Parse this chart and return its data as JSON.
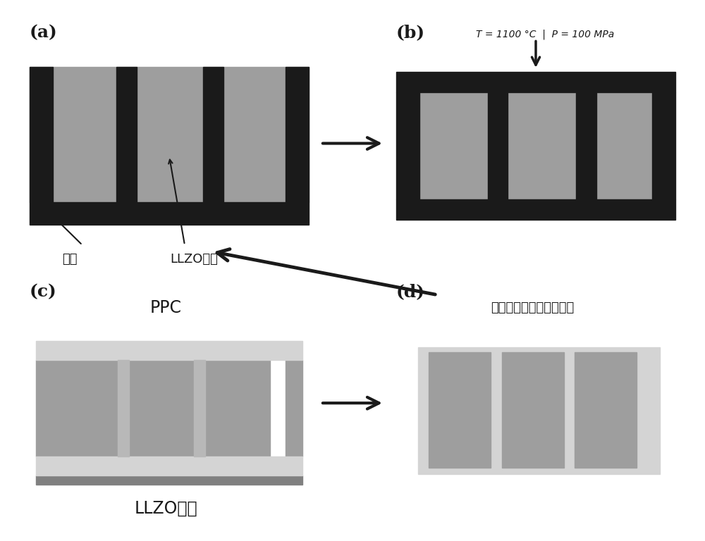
{
  "bg_color": "#ffffff",
  "gray": "#9e9e9e",
  "black": "#1a1a1a",
  "light_gray": "#d4d4d4",
  "mid_gray": "#a8a8a8",
  "dark_gray": "#808080",
  "label_fontsize": 18,
  "text_fontsize": 15,
  "annot_fontsize": 13,
  "label_a": "(a)",
  "label_b": "(b)",
  "label_c": "(c)",
  "label_d": "(d)",
  "text_zhan": "砧板",
  "text_llzo_powder": "LLZO粉末",
  "text_condition": "T = 1100 °C  |  P = 100 MPa",
  "text_PPC": "PPC",
  "text_llzo_frame": "LLZO骨架",
  "text_final": "垂直通道复合固态电解质"
}
